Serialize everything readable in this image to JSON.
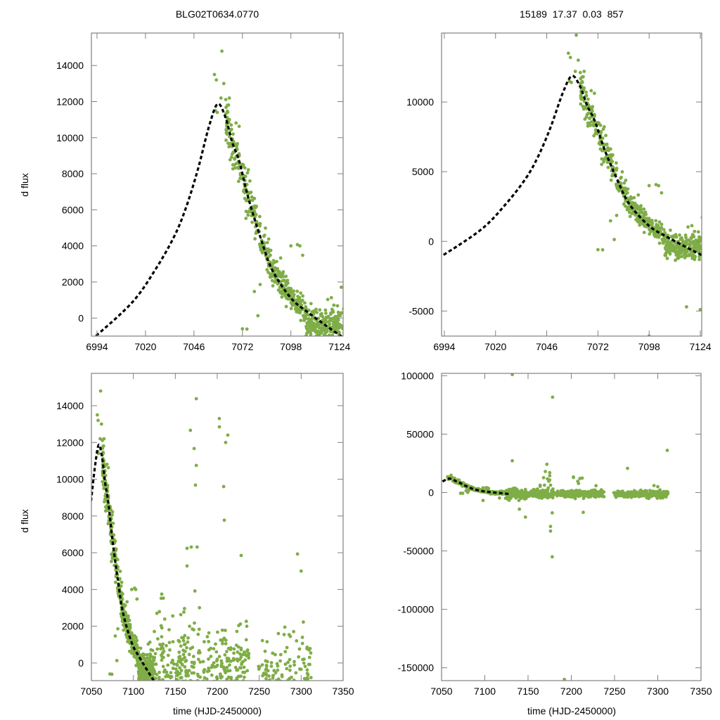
{
  "colors": {
    "points": "#7fad47",
    "model": "#000000",
    "frame": "#808080"
  },
  "chart_data": {
    "type": "scatter",
    "title_left": "BLG02T0634.0770",
    "title_right": "15189  17.37  0.03  857",
    "ylabel": "d flux",
    "xlabel": "time (HJD-2450000)",
    "model_curve": {
      "x": [
        6991,
        6994,
        7013,
        7025.4,
        7035.4,
        7041.6,
        7047.9,
        7054.1,
        7058.7,
        7062.8,
        7066.6,
        7070.3,
        7075.3,
        7081.5,
        7087.8,
        7097.7,
        7106.5,
        7124,
        7128
      ],
      "y": [
        -1100,
        -936,
        884,
        2704,
        4524,
        6084,
        8164,
        10634,
        11870,
        11154,
        9724,
        8684,
        6604,
        4524,
        2704,
        1144,
        364,
        -936,
        -1100
      ]
    },
    "points": [
      [
        7057,
        13500
      ],
      [
        7058,
        13200
      ],
      [
        7061,
        14800
      ],
      [
        7062,
        13000
      ],
      [
        7060.5,
        12200
      ],
      [
        7065,
        12200
      ],
      [
        7057.5,
        11500
      ],
      [
        7058.5,
        11400
      ],
      [
        7065,
        11000
      ],
      [
        7066,
        10700
      ],
      [
        7064,
        11800
      ],
      [
        7067,
        10200
      ],
      [
        7078.4,
        1470
      ],
      [
        7080.3,
        130
      ],
      [
        7074.4,
        -610
      ],
      [
        7101.5,
        4070
      ],
      [
        7104.3,
        3480
      ],
      [
        7092.5,
        3330
      ],
      [
        7081.5,
        1860
      ],
      [
        7072,
        -600
      ],
      [
        7098,
        -6800
      ],
      [
        7117,
        -4700
      ],
      [
        7124,
        -4900
      ],
      [
        7098,
        4000
      ],
      [
        7168,
        12660
      ],
      [
        7175,
        14380
      ],
      [
        7172.4,
        11670
      ],
      [
        7175,
        10750
      ],
      [
        7174,
        9680
      ],
      [
        7164,
        6240
      ],
      [
        7169,
        6310
      ],
      [
        7176,
        6310
      ],
      [
        7164,
        5280
      ],
      [
        7202.5,
        12850
      ],
      [
        7212.6,
        12400
      ],
      [
        7207.6,
        9600
      ],
      [
        7208.4,
        7770
      ],
      [
        7228.5,
        5850
      ],
      [
        7295.6,
        5930
      ],
      [
        7280.5,
        1950
      ],
      [
        7133.8,
        3750
      ],
      [
        7134,
        1910
      ],
      [
        7102.8,
        4000
      ],
      [
        7131.8,
        101000
      ],
      [
        7131.8,
        27200
      ],
      [
        7178.4,
        81600
      ],
      [
        7171.8,
        24200
      ],
      [
        7176,
        -29000
      ],
      [
        7176,
        -33000
      ],
      [
        7178,
        -17400
      ],
      [
        7147,
        -21000
      ],
      [
        7140,
        -14300
      ],
      [
        7213.8,
        -17000
      ],
      [
        7265,
        20700
      ],
      [
        7311,
        36100
      ],
      [
        7202.4,
        13300
      ],
      [
        7178,
        -55000
      ],
      [
        7192,
        -160000
      ],
      [
        7170,
        18000
      ],
      [
        7175,
        17000
      ],
      [
        7210,
        12000
      ],
      [
        7300,
        5000
      ]
    ],
    "point_clusters": [
      {
        "x": [
          7063,
          7106
        ],
        "center": "model",
        "sd": 300,
        "sd_frac": 0.05,
        "n": 380
      },
      {
        "x": [
          7106,
          7125
        ],
        "center": -400,
        "sd": 450,
        "n": 220
      },
      {
        "x": [
          7125,
          7180
        ],
        "center": -1200,
        "sd": 1800,
        "n": 320
      },
      {
        "x": [
          7183,
          7238
        ],
        "center": -1000,
        "sd": 1500,
        "n": 260
      },
      {
        "x": [
          7248,
          7312
        ],
        "center": -1500,
        "sd": 1500,
        "n": 230
      }
    ],
    "panels": [
      {
        "id": "top-left",
        "xlim": [
          6991,
          7126
        ],
        "ylim": [
          -1000,
          15800
        ],
        "xticks": [
          6994,
          7020,
          7046,
          7072,
          7098,
          7124
        ],
        "yticks": [
          0,
          2000,
          4000,
          6000,
          8000,
          10000,
          12000,
          14000
        ],
        "grid": false
      },
      {
        "id": "top-right",
        "xlim": [
          6992.6,
          7124.7
        ],
        "ylim": [
          -6800,
          14950
        ],
        "xticks": [
          6994,
          7020,
          7046,
          7072,
          7098,
          7124
        ],
        "yticks": [
          -5000,
          0,
          5000,
          10000
        ],
        "grid": false
      },
      {
        "id": "bottom-left",
        "xlim": [
          7050,
          7350
        ],
        "ylim": [
          -960,
          15760
        ],
        "xticks": [
          7050,
          7100,
          7150,
          7200,
          7250,
          7300,
          7350
        ],
        "yticks": [
          0,
          2000,
          4000,
          6000,
          8000,
          10000,
          12000,
          14000
        ],
        "grid": false
      },
      {
        "id": "bottom-right",
        "xlim": [
          7050,
          7350
        ],
        "ylim": [
          -161000,
          102000
        ],
        "xticks": [
          7050,
          7100,
          7150,
          7200,
          7250,
          7300,
          7350
        ],
        "yticks": [
          -150000,
          -100000,
          -50000,
          0,
          50000,
          100000
        ],
        "grid": false
      }
    ]
  }
}
